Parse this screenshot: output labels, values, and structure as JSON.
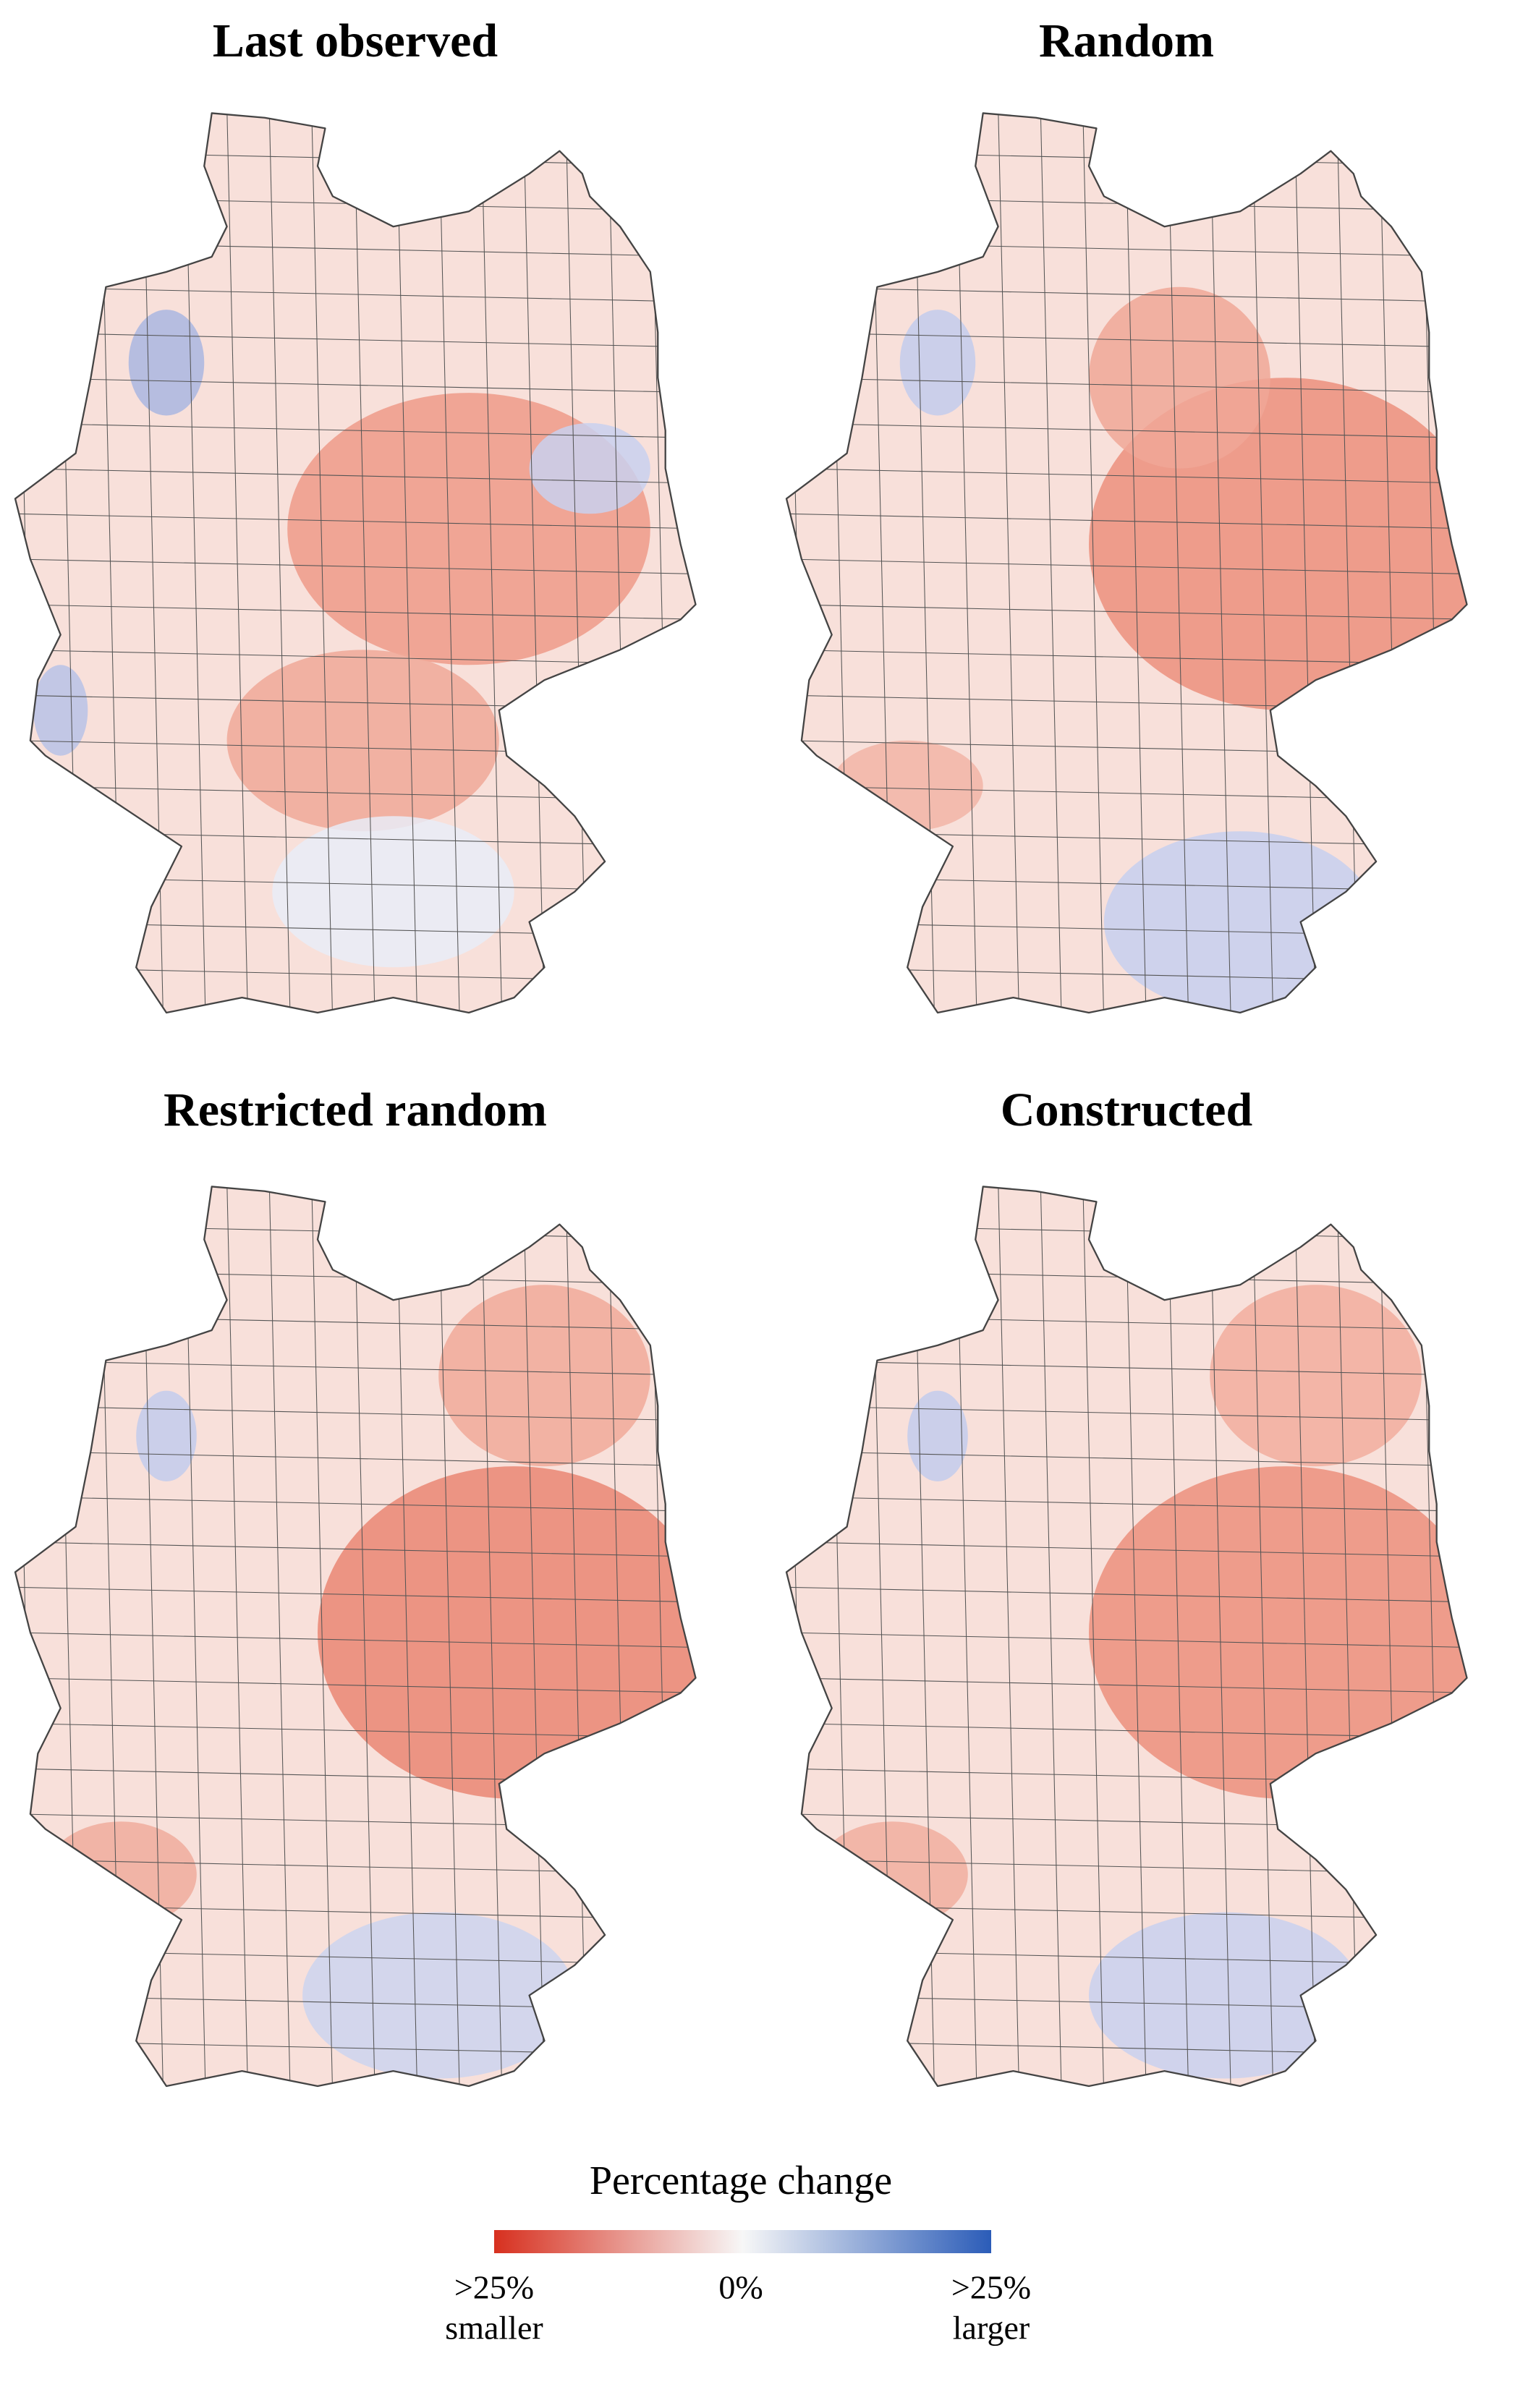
{
  "panels": [
    {
      "title": "Last observed"
    },
    {
      "title": "Random"
    },
    {
      "title": "Restricted random"
    },
    {
      "title": "Constructed"
    }
  ],
  "legend": {
    "title": "Percentage change",
    "low_value": ">25%",
    "low_text": "smaller",
    "mid": "0%",
    "high_value": ">25%",
    "high_text": "larger"
  }
}
